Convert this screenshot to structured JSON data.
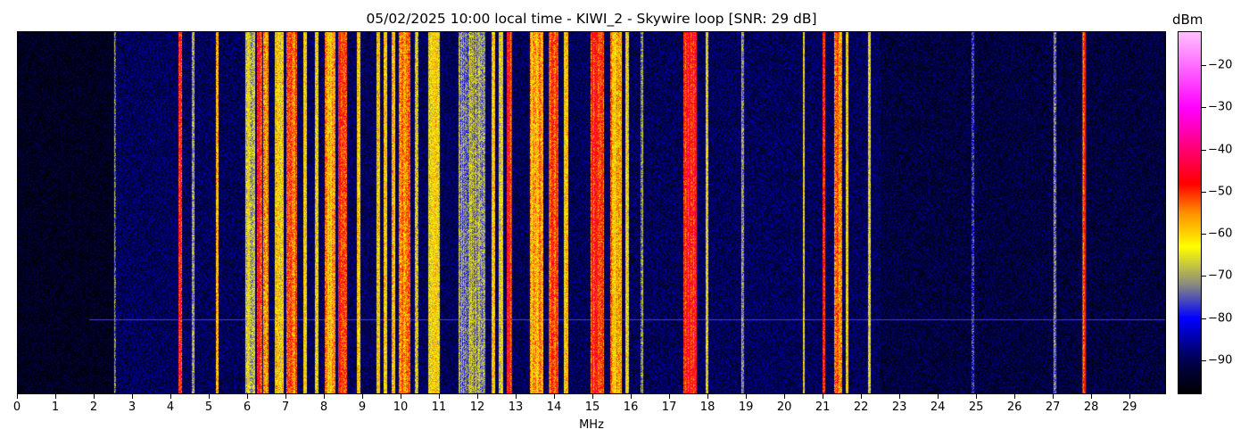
{
  "chart_data": {
    "type": "heatmap",
    "title": "05/02/2025 10:00 local time - KIWI_2 - Skywire loop [SNR: 29 dB]",
    "xlabel": "MHz",
    "ylabel": "",
    "xlim": [
      0,
      29.95
    ],
    "xticks": [
      "0",
      "1",
      "2",
      "3",
      "4",
      "5",
      "6",
      "7",
      "8",
      "9",
      "10",
      "11",
      "12",
      "13",
      "14",
      "15",
      "16",
      "17",
      "18",
      "19",
      "20",
      "21",
      "22",
      "23",
      "24",
      "25",
      "26",
      "27",
      "28",
      "29"
    ],
    "colorbar": {
      "label": "dBm",
      "range": [
        -98,
        -12
      ],
      "ticks": [
        "−20",
        "−30",
        "−40",
        "−50",
        "−60",
        "−70",
        "−80",
        "−90"
      ],
      "tick_values": [
        -20,
        -30,
        -40,
        -50,
        -60,
        -70,
        -80,
        -90
      ],
      "colormap": [
        [
          "-98",
          "#000000"
        ],
        [
          "-90",
          "#000050"
        ],
        [
          "-80",
          "#0000ff"
        ],
        [
          "-72",
          "#8a8a80"
        ],
        [
          "-63",
          "#ffff00"
        ],
        [
          "-55",
          "#ff9000"
        ],
        [
          "-48",
          "#ff0000"
        ],
        [
          "-40",
          "#ff0070"
        ],
        [
          "-30",
          "#ff00ff"
        ],
        [
          "-12",
          "#ffc0ff"
        ]
      ]
    },
    "noise_floor_dbm": -90,
    "signals": [
      {
        "f": [
          2.52,
          2.58
        ],
        "dbm": -74
      },
      {
        "f": [
          4.2,
          4.3
        ],
        "dbm": -50
      },
      {
        "f": [
          4.55,
          4.62
        ],
        "dbm": -70
      },
      {
        "f": [
          5.18,
          5.24
        ],
        "dbm": -62
      },
      {
        "f": [
          5.95,
          6.2
        ],
        "dbm": -66
      },
      {
        "f": [
          6.25,
          6.38
        ],
        "dbm": -48
      },
      {
        "f": [
          6.4,
          6.55
        ],
        "dbm": -56
      },
      {
        "f": [
          6.7,
          6.95
        ],
        "dbm": -63
      },
      {
        "f": [
          7.0,
          7.3
        ],
        "dbm": -52
      },
      {
        "f": [
          7.45,
          7.55
        ],
        "dbm": -64
      },
      {
        "f": [
          7.75,
          7.85
        ],
        "dbm": -62
      },
      {
        "f": [
          8.0,
          8.3
        ],
        "dbm": -58
      },
      {
        "f": [
          8.35,
          8.6
        ],
        "dbm": -48
      },
      {
        "f": [
          8.85,
          8.95
        ],
        "dbm": -62
      },
      {
        "f": [
          9.35,
          9.45
        ],
        "dbm": -62
      },
      {
        "f": [
          9.55,
          9.65
        ],
        "dbm": -60
      },
      {
        "f": [
          9.75,
          9.85
        ],
        "dbm": -60
      },
      {
        "f": [
          9.95,
          10.25
        ],
        "dbm": -56
      },
      {
        "f": [
          10.35,
          10.45
        ],
        "dbm": -65
      },
      {
        "f": [
          10.7,
          11.0
        ],
        "dbm": -63
      },
      {
        "f": [
          11.5,
          12.2
        ],
        "dbm": -71
      },
      {
        "f": [
          12.35,
          12.45
        ],
        "dbm": -62
      },
      {
        "f": [
          12.55,
          12.65
        ],
        "dbm": -64
      },
      {
        "f": [
          12.75,
          12.9
        ],
        "dbm": -50
      },
      {
        "f": [
          13.35,
          13.7
        ],
        "dbm": -58
      },
      {
        "f": [
          13.85,
          14.1
        ],
        "dbm": -52
      },
      {
        "f": [
          14.25,
          14.35
        ],
        "dbm": -62
      },
      {
        "f": [
          14.95,
          15.3
        ],
        "dbm": -50
      },
      {
        "f": [
          15.45,
          15.75
        ],
        "dbm": -57
      },
      {
        "f": [
          15.85,
          15.95
        ],
        "dbm": -62
      },
      {
        "f": [
          16.25,
          16.32
        ],
        "dbm": -68
      },
      {
        "f": [
          17.35,
          17.7
        ],
        "dbm": -48
      },
      {
        "f": [
          17.95,
          18.02
        ],
        "dbm": -68
      },
      {
        "f": [
          18.88,
          18.95
        ],
        "dbm": -72
      },
      {
        "f": [
          20.47,
          20.53
        ],
        "dbm": -62
      },
      {
        "f": [
          20.98,
          21.05
        ],
        "dbm": -52
      },
      {
        "f": [
          21.28,
          21.5
        ],
        "dbm": -55
      },
      {
        "f": [
          21.58,
          21.65
        ],
        "dbm": -62
      },
      {
        "f": [
          22.17,
          22.23
        ],
        "dbm": -66
      },
      {
        "f": [
          24.87,
          24.93
        ],
        "dbm": -75
      },
      {
        "f": [
          27.02,
          27.08
        ],
        "dbm": -70
      },
      {
        "f": [
          27.76,
          27.84
        ],
        "dbm": -50
      }
    ]
  }
}
